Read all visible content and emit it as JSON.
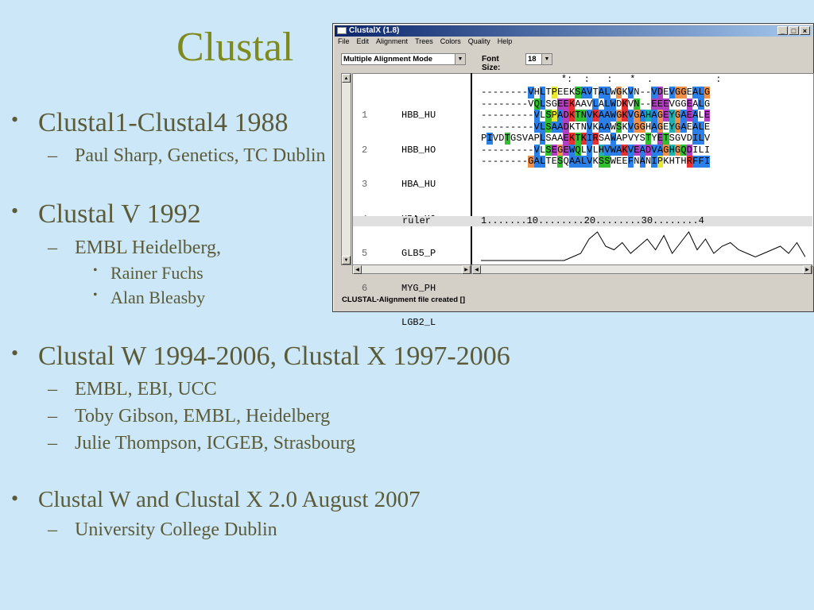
{
  "slide": {
    "title": "Clustal",
    "sections": [
      {
        "heading": "Clustal1-Clustal4 1988",
        "items": [
          {
            "text": "Paul Sharp, Genetics, TC Dublin"
          }
        ]
      },
      {
        "heading": "Clustal V 1992",
        "items": [
          {
            "text": "EMBL Heidelberg,",
            "subitems": [
              "Rainer Fuchs",
              "Alan Bleasby"
            ]
          }
        ]
      },
      {
        "heading": "Clustal W 1994-2006, Clustal X 1997-2006",
        "items": [
          {
            "text": "EMBL, EBI, UCC"
          },
          {
            "text": "Toby Gibson, EMBL, Heidelberg"
          },
          {
            "text": "Julie Thompson, ICGEB, Strasbourg"
          }
        ]
      },
      {
        "heading": "Clustal W and Clustal X 2.0 August 2007",
        "items": [
          {
            "text": "University College Dublin"
          }
        ]
      }
    ]
  },
  "window": {
    "title": "ClustalX (1.8)",
    "controls": {
      "minimize": "_",
      "maximize": "□",
      "close": "×"
    },
    "menu": [
      "File",
      "Edit",
      "Alignment",
      "Trees",
      "Colors",
      "Quality",
      "Help"
    ],
    "mode_select": "Multiple Alignment Mode",
    "font_size_label": "Font Size:",
    "font_size_value": "18",
    "consensus_line": "              *:  :   :   *  .           :",
    "sequences": [
      {
        "num": "1",
        "name": "HBB_HU",
        "seq": "--------VHLTPEEKSAVTALWGKVN--VDEVGGEALG"
      },
      {
        "num": "2",
        "name": "HBB_HO",
        "seq": "--------VQLSGEEKAAVLALWDKVN--EEEVGGEALG"
      },
      {
        "num": "3",
        "name": "HBA_HU",
        "seq": "---------VLSPADKTNVKAAWGKVGAHAGEYGAEALE"
      },
      {
        "num": "4",
        "name": "HBA_HO",
        "seq": "---------VLSAADKTNVKAAWSKVGGHAGEYGAEALE"
      },
      {
        "num": "5",
        "name": "GLB5_P",
        "seq": "PIVDTGSVAPLSAAEKTKIRSAWAPVYSTYETSGVDILV"
      },
      {
        "num": "6",
        "name": "MYG_PH",
        "seq": "---------VLSEGEWQLVLHVWAKVEADVAGHGQDILI"
      },
      {
        "num": "",
        "name": "LGB2_L",
        "seq": "--------GALTESQAALVKSSWEEFNANIPKHTHRFFI"
      }
    ],
    "ruler_label": "ruler",
    "ruler_text": "1.......10........20........30........4",
    "quality_curve": [
      0,
      0,
      0,
      0,
      0,
      0,
      0,
      0,
      0,
      0,
      0,
      1,
      2,
      6,
      8,
      4,
      3,
      5,
      2,
      4,
      6,
      3,
      7,
      2,
      5,
      8,
      3,
      6,
      2,
      4,
      5,
      3,
      2,
      1,
      2,
      3,
      4,
      2,
      5,
      1
    ],
    "status_text": "CLUSTAL-Alignment file created  []",
    "colors": {
      "hydrophobic": "#2a7fe8",
      "positive": "#e83030",
      "negative": "#b040c0",
      "polar": "#30c030",
      "cys": "#f08080",
      "gly": "#f09048",
      "pro": "#e8e830",
      "arom": "#20b0b0"
    }
  }
}
